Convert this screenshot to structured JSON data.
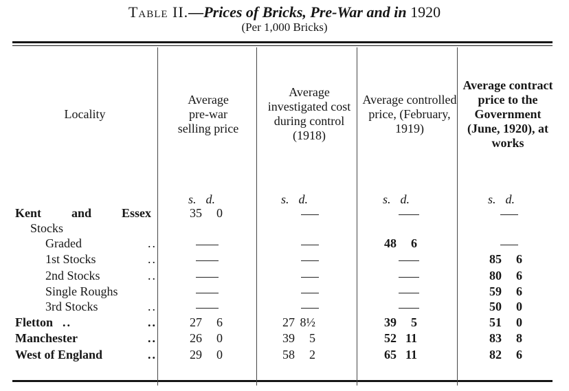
{
  "title": {
    "lead": "Table II.",
    "italic": "—Prices of Bricks, Pre-War and in",
    "year": "1920",
    "subtitle": "(Per 1,000 Bricks)"
  },
  "headers": [
    "Locality",
    "Average pre-war selling price",
    "Average investigated cost during control (1918)",
    "Average controlled price, (February, 1919)",
    "Average contract price to the Government (June, 1920), at works"
  ],
  "units": {
    "s": "s.",
    "d": "d."
  },
  "rows": [
    {
      "label": "Kent and Essex",
      "cells": [
        [
          "35",
          "0"
        ],
        "—",
        "—",
        "—"
      ]
    },
    {
      "label": "Stocks",
      "cells": []
    },
    {
      "label": "Graded",
      "dots": "..",
      "cells": [
        "—",
        "—",
        [
          "48",
          "6"
        ],
        "—"
      ]
    },
    {
      "label": "1st Stocks",
      "dots": "..",
      "cells": [
        "—",
        "—",
        "—",
        [
          "85",
          "6"
        ]
      ]
    },
    {
      "label": "2nd Stocks",
      "dots": "..",
      "cells": [
        "—",
        "—",
        "—",
        [
          "80",
          "6"
        ]
      ]
    },
    {
      "label": "Single Roughs",
      "cells": [
        "—",
        "—",
        "—",
        [
          "59",
          "6"
        ]
      ]
    },
    {
      "label": "3rd Stocks",
      "dots": "..",
      "cells": [
        "—",
        "—",
        "—",
        [
          "50",
          "0"
        ]
      ]
    },
    {
      "label": "Fletton",
      "mid": "..",
      "dots": "..",
      "cells": [
        [
          "27",
          "6"
        ],
        [
          "27",
          "8½"
        ],
        [
          "39",
          "5"
        ],
        [
          "51",
          "0"
        ]
      ]
    },
    {
      "label": "Manchester",
      "dots": "..",
      "cells": [
        [
          "26",
          "0"
        ],
        [
          "39",
          "5"
        ],
        [
          "52",
          "11"
        ],
        [
          "83",
          "8"
        ]
      ]
    },
    {
      "label": "West of England",
      "dots": "..",
      "cells": [
        [
          "29",
          "0"
        ],
        [
          "58",
          "2"
        ],
        [
          "65",
          "11"
        ],
        [
          "82",
          "6"
        ]
      ]
    }
  ]
}
